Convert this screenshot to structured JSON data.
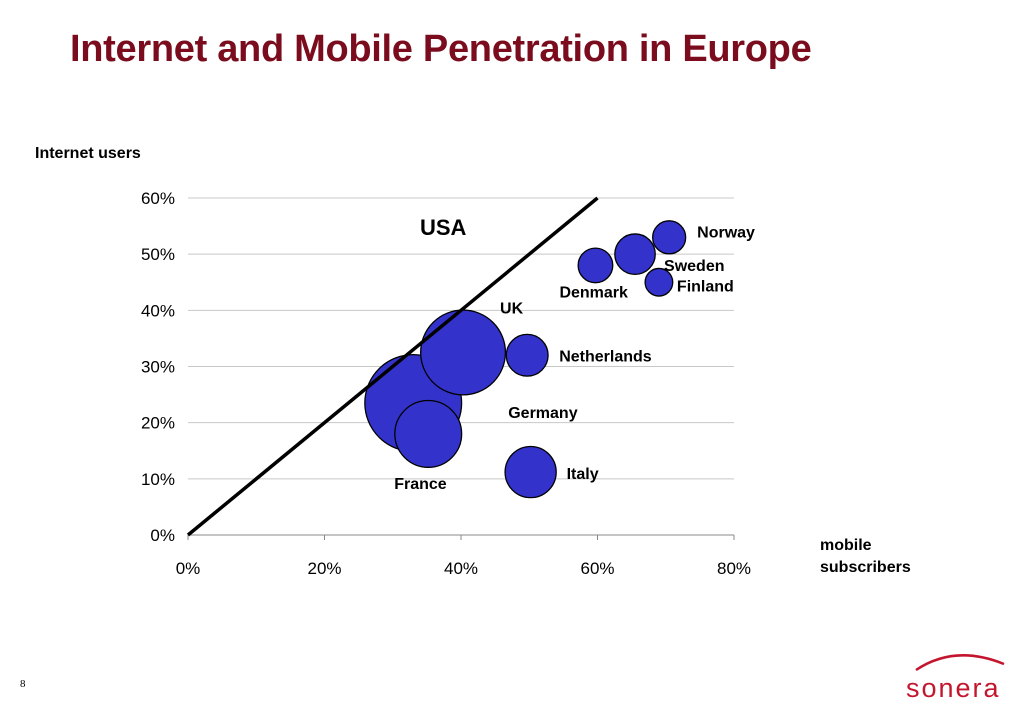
{
  "page": {
    "title": "Internet and Mobile Penetration in Europe",
    "page_number": "8"
  },
  "logo": {
    "text": "sonera",
    "color": "#c4152e"
  },
  "colors": {
    "title": "#7a0c1e",
    "bubble_fill": "#3333cc",
    "bubble_stroke": "#000000"
  },
  "chart_data": {
    "type": "scatter",
    "subtype": "bubble",
    "ylabel": "Internet users",
    "xlabel": "mobile subscribers",
    "xlim": [
      0,
      0.8
    ],
    "ylim": [
      0,
      0.6
    ],
    "x_ticks": [
      "0%",
      "20%",
      "40%",
      "60%",
      "80%"
    ],
    "y_ticks": [
      "0%",
      "10%",
      "20%",
      "30%",
      "40%",
      "50%",
      "60%"
    ],
    "grid": "horizontal",
    "points": [
      {
        "label": "Norway",
        "x": 0.705,
        "y": 0.53,
        "size": 1.0
      },
      {
        "label": "Sweden",
        "x": 0.655,
        "y": 0.5,
        "size": 1.5
      },
      {
        "label": "Finland",
        "x": 0.69,
        "y": 0.45,
        "size": 0.7
      },
      {
        "label": "Denmark",
        "x": 0.597,
        "y": 0.48,
        "size": 1.1
      },
      {
        "label": "UK",
        "x": 0.403,
        "y": 0.325,
        "size": 6.6
      },
      {
        "label": "Netherlands",
        "x": 0.497,
        "y": 0.32,
        "size": 1.6
      },
      {
        "label": "Germany",
        "x": 0.33,
        "y": 0.235,
        "size": 8.6
      },
      {
        "label": "France",
        "x": 0.352,
        "y": 0.18,
        "size": 4.1
      },
      {
        "label": "Italy",
        "x": 0.502,
        "y": 0.112,
        "size": 2.4
      }
    ],
    "annotations": [
      {
        "text": "USA",
        "type": "line",
        "from": [
          0,
          0
        ],
        "to": [
          0.6,
          0.6
        ]
      }
    ]
  }
}
